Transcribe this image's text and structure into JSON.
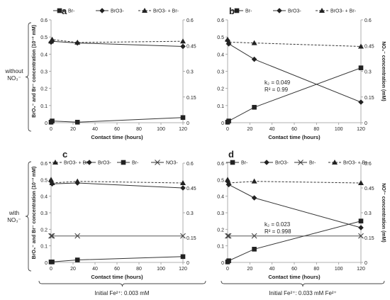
{
  "labels": {
    "row1_group": [
      "without",
      "NO₃⁻"
    ],
    "row2_group": [
      "with",
      "NO₃⁻"
    ],
    "bottom_left": "Initial Fe²⁺: 0.003 mM",
    "bottom_right": "Initial Fe²⁺: 0.033 mM Fe²⁺"
  },
  "chart_data": [
    {
      "panel": "a",
      "type": "line",
      "xlabel": "Contact time (hours)",
      "ylabel_left": "BrO₃⁻ and Br⁻ concentration (10⁻³ mM)",
      "ylabel_right": "",
      "xlim": [
        0,
        120
      ],
      "ylim": [
        0,
        0.6
      ],
      "xticks": [
        0,
        20,
        40,
        60,
        80,
        100,
        120
      ],
      "yticks_left": [
        "0",
        "0.1",
        "0.2",
        "0.3",
        "0.4",
        "0.5",
        "0.6"
      ],
      "yticks_right": [
        "0",
        "0.15",
        "0.3",
        "0.45",
        "0.6"
      ],
      "legend_position": "top",
      "series": [
        {
          "name": "Br-",
          "marker": "square",
          "dashed": false,
          "x": [
            0,
            1,
            24,
            120
          ],
          "y": [
            0.003,
            0.01,
            0.003,
            0.03
          ]
        },
        {
          "name": "BrO3-",
          "marker": "diamond",
          "dashed": false,
          "x": [
            0,
            1,
            24,
            120
          ],
          "y": [
            0.47,
            0.475,
            0.465,
            0.445
          ]
        },
        {
          "name": "BrO3- + Br-",
          "marker": "triangle",
          "dashed": true,
          "x": [
            0,
            1,
            24,
            120
          ],
          "y": [
            0.475,
            0.485,
            0.468,
            0.475
          ]
        }
      ],
      "annotations": []
    },
    {
      "panel": "b",
      "type": "line",
      "xlabel": "Contact time (hours)",
      "ylabel_left": "",
      "ylabel_right": "NO₃⁻ concentration (mM)",
      "xlim": [
        0,
        120
      ],
      "ylim": [
        0,
        0.6
      ],
      "xticks": [
        0,
        20,
        40,
        60,
        80,
        100,
        120
      ],
      "yticks_left": [
        "0",
        "0.1",
        "0.2",
        "0.3",
        "0.4",
        "0.5",
        "0.6"
      ],
      "yticks_right": [
        "0",
        "0.15",
        "0.3",
        "0.45",
        "0.6"
      ],
      "legend_position": "top",
      "series": [
        {
          "name": "Br-",
          "marker": "square",
          "dashed": false,
          "x": [
            0,
            1,
            24,
            120
          ],
          "y": [
            0.003,
            0.01,
            0.09,
            0.32
          ]
        },
        {
          "name": "BrO3-",
          "marker": "diamond",
          "dashed": false,
          "x": [
            0,
            1,
            24,
            120
          ],
          "y": [
            0.48,
            0.46,
            0.37,
            0.12
          ]
        },
        {
          "name": "BrO3- + Br-",
          "marker": "triangle",
          "dashed": true,
          "x": [
            0,
            1,
            24,
            120
          ],
          "y": [
            0.485,
            0.47,
            0.465,
            0.445
          ]
        }
      ],
      "annotations": [
        "k₂ = 0.049",
        "R² = 0.99"
      ]
    },
    {
      "panel": "c",
      "type": "line",
      "xlabel": "Contact time (hours)",
      "ylabel_left": "BrO₃⁻ and Br⁻ concentration (10⁻³ mM)",
      "ylabel_right": "",
      "xlim": [
        0,
        120
      ],
      "ylim": [
        0,
        0.6
      ],
      "xticks": [
        0,
        20,
        40,
        60,
        80,
        100,
        120
      ],
      "yticks_left": [
        "0",
        "0.1",
        "0.2",
        "0.3",
        "0.4",
        "0.5",
        "0.6"
      ],
      "yticks_right": [
        "0",
        "0.15",
        "0.3",
        "0.45",
        "0.6"
      ],
      "legend_position": "top",
      "series": [
        {
          "name": "BrO3- + Br",
          "marker": "triangle",
          "dashed": true,
          "x": [
            0,
            1,
            24,
            120
          ],
          "y": [
            0.5,
            0.48,
            0.49,
            0.48
          ]
        },
        {
          "name": "BrO3-",
          "marker": "diamond",
          "dashed": false,
          "x": [
            0,
            1,
            24,
            120
          ],
          "y": [
            0.49,
            0.475,
            0.48,
            0.45
          ]
        },
        {
          "name": "Br-",
          "marker": "square",
          "dashed": false,
          "x": [
            0,
            1,
            24,
            120
          ],
          "y": [
            0.003,
            0.003,
            0.015,
            0.035
          ]
        },
        {
          "name": "NO3-",
          "marker": "x",
          "dashed": false,
          "x": [
            0,
            1,
            24,
            120
          ],
          "y": [
            0.16,
            0.16,
            0.16,
            0.16
          ]
        }
      ],
      "annotations": []
    },
    {
      "panel": "d",
      "type": "line",
      "xlabel": "Contact time (hours)",
      "ylabel_left": "",
      "ylabel_right": "NO³⁻ concentration (mM)",
      "xlim": [
        0,
        120
      ],
      "ylim": [
        0,
        0.6
      ],
      "xticks": [
        0,
        20,
        40,
        60,
        80,
        100,
        120
      ],
      "yticks_left": [
        "0",
        "0.1",
        "0.2",
        "0.3",
        "0.4",
        "0.5",
        "0.6"
      ],
      "yticks_right": [
        "0",
        "0.15",
        "0.3",
        "0.45",
        "0.6"
      ],
      "legend_position": "top",
      "series": [
        {
          "name": "Br-",
          "marker": "square",
          "dashed": false,
          "x": [
            0,
            1,
            24,
            120
          ],
          "y": [
            0.003,
            0.01,
            0.08,
            0.25
          ]
        },
        {
          "name": "BrO3-",
          "marker": "diamond",
          "dashed": false,
          "x": [
            0,
            1,
            24,
            120
          ],
          "y": [
            0.49,
            0.47,
            0.39,
            0.21
          ]
        },
        {
          "name": "Br-",
          "marker": "x",
          "dashed": false,
          "x": [
            0,
            1,
            24,
            120
          ],
          "y": [
            0.16,
            0.16,
            0.16,
            0.16
          ]
        },
        {
          "name": "BrO3- + Br-",
          "marker": "triangle",
          "dashed": true,
          "x": [
            0,
            1,
            24,
            120
          ],
          "y": [
            0.5,
            0.48,
            0.49,
            0.48
          ]
        }
      ],
      "annotations": [
        "k₂ = 0.023",
        "R² = 0.998"
      ]
    }
  ]
}
